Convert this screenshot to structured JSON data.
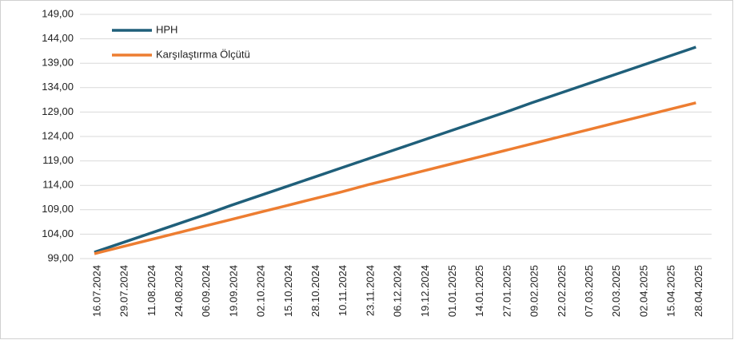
{
  "chart_data": {
    "type": "line",
    "categories": [
      "16.07.2024",
      "29.07.2024",
      "11.08.2024",
      "24.08.2024",
      "06.09.2024",
      "19.09.2024",
      "02.10.2024",
      "15.10.2024",
      "28.10.2024",
      "10.11.2024",
      "23.11.2024",
      "06.12.2024",
      "19.12.2024",
      "01.01.2025",
      "14.01.2025",
      "27.01.2025",
      "09.02.2025",
      "22.02.2025",
      "07.03.2025",
      "20.03.2025",
      "02.04.2025",
      "15.04.2025",
      "28.04.2025"
    ],
    "series": [
      {
        "name": "HPH",
        "color": "#1f5f7a",
        "values": [
          100.3,
          102.2,
          104.1,
          106.0,
          107.9,
          109.9,
          111.8,
          113.7,
          115.6,
          117.5,
          119.4,
          121.3,
          123.2,
          125.1,
          127.0,
          128.9,
          130.9,
          132.8,
          134.7,
          136.6,
          138.5,
          140.4,
          142.3
        ]
      },
      {
        "name": "Karşılaştırma Ölçütü",
        "color": "#ed7d31",
        "values": [
          100.0,
          101.4,
          102.8,
          104.2,
          105.6,
          107.0,
          108.4,
          109.8,
          111.2,
          112.6,
          114.1,
          115.5,
          116.9,
          118.3,
          119.7,
          121.1,
          122.5,
          123.9,
          125.3,
          126.7,
          128.1,
          129.5,
          130.9
        ]
      }
    ],
    "ylim": [
      99,
      149
    ],
    "yticks": [
      {
        "value": 99,
        "label": "99,00"
      },
      {
        "value": 104,
        "label": "104,00"
      },
      {
        "value": 109,
        "label": "109,00"
      },
      {
        "value": 114,
        "label": "114,00"
      },
      {
        "value": 119,
        "label": "119,00"
      },
      {
        "value": 124,
        "label": "124,00"
      },
      {
        "value": 129,
        "label": "129,00"
      },
      {
        "value": 134,
        "label": "134,00"
      },
      {
        "value": 139,
        "label": "139,00"
      },
      {
        "value": 144,
        "label": "144,00"
      },
      {
        "value": 149,
        "label": "149,00"
      }
    ],
    "grid": true,
    "legend": "top-left"
  }
}
